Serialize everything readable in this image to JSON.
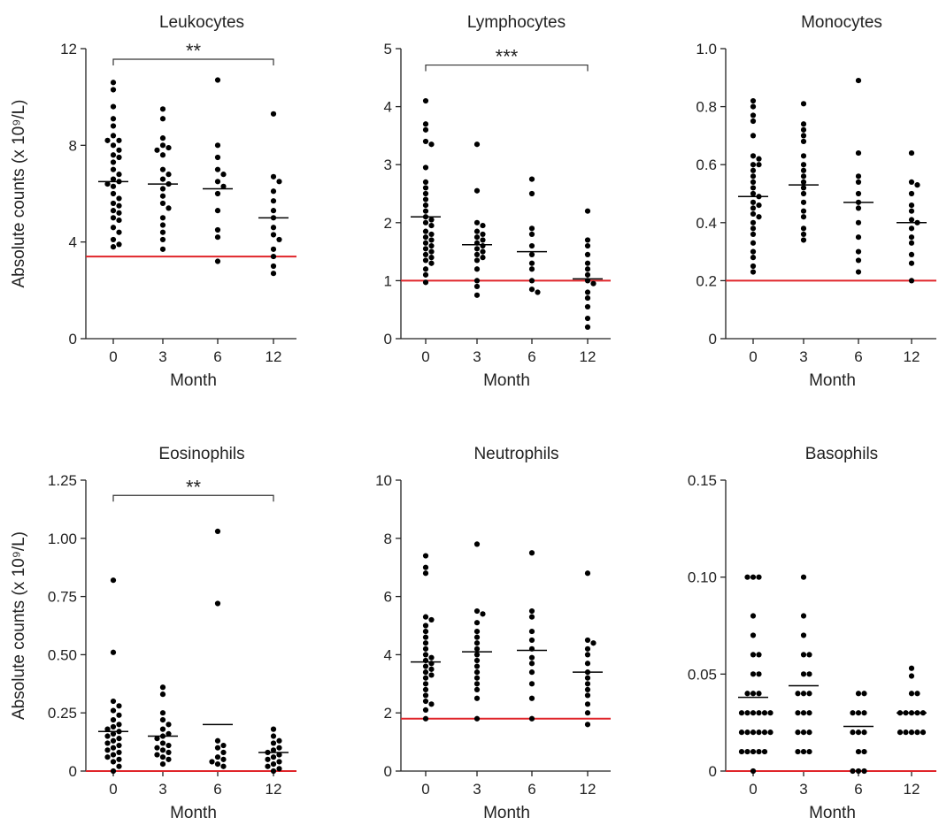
{
  "figure": {
    "ylabel": "Absolute counts (x 10⁹/L)",
    "xlabel": "Month",
    "reference_line_color": "#e0252a",
    "point_color": "#000000",
    "mean_line_color": "#000000"
  },
  "chart_data": [
    {
      "type": "scatter",
      "title": "Leukocytes",
      "xlabel": "Month",
      "ylabel": "Absolute counts (x 10⁹/L)",
      "categories": [
        "0",
        "3",
        "6",
        "12"
      ],
      "ylim": [
        0,
        12
      ],
      "yticks": [
        0,
        4,
        8,
        12
      ],
      "ytick_labels": [
        "0",
        "4",
        "8",
        "12"
      ],
      "reference_line": 3.4,
      "means": [
        6.5,
        6.4,
        6.2,
        5.0
      ],
      "points": [
        [
          10.6,
          10.3,
          9.6,
          9.1,
          8.8,
          8.4,
          8.2,
          8.2,
          8.0,
          7.8,
          7.6,
          7.5,
          7.3,
          7.0,
          6.8,
          6.6,
          6.5,
          6.4,
          6.3,
          6.0,
          5.8,
          5.6,
          5.5,
          5.3,
          5.2,
          5.0,
          4.9,
          4.6,
          4.4,
          4.1,
          3.9,
          3.8
        ],
        [
          9.5,
          9.1,
          8.3,
          8.0,
          7.9,
          7.8,
          7.6,
          7.0,
          6.8,
          6.6,
          6.4,
          6.2,
          5.9,
          5.6,
          5.4,
          5.0,
          4.7,
          4.4,
          4.1,
          3.7
        ],
        [
          10.7,
          8.0,
          7.5,
          7.0,
          6.8,
          6.5,
          6.3,
          6.0,
          5.3,
          4.5,
          4.2,
          3.2
        ],
        [
          9.3,
          6.7,
          6.5,
          6.1,
          5.7,
          5.3,
          5.0,
          4.6,
          4.3,
          4.1,
          3.7,
          3.4,
          3.0,
          2.7
        ]
      ],
      "annotation": {
        "text": "**",
        "from": "0",
        "to": "12",
        "y": 12.0
      }
    },
    {
      "type": "scatter",
      "title": "Lymphocytes",
      "xlabel": "Month",
      "ylabel": "",
      "categories": [
        "0",
        "3",
        "6",
        "12"
      ],
      "ylim": [
        0,
        5
      ],
      "yticks": [
        0,
        1,
        2,
        3,
        4,
        5
      ],
      "ytick_labels": [
        "0",
        "1",
        "2",
        "3",
        "4",
        "5"
      ],
      "reference_line": 1.0,
      "means": [
        2.1,
        1.62,
        1.5,
        1.03
      ],
      "points": [
        [
          4.1,
          3.7,
          3.6,
          3.4,
          3.35,
          2.95,
          2.7,
          2.6,
          2.5,
          2.4,
          2.3,
          2.2,
          2.1,
          2.05,
          2.0,
          1.95,
          1.85,
          1.8,
          1.75,
          1.7,
          1.65,
          1.6,
          1.55,
          1.5,
          1.45,
          1.4,
          1.35,
          1.3,
          1.2,
          1.1,
          0.97
        ],
        [
          3.35,
          2.55,
          2.0,
          1.95,
          1.85,
          1.8,
          1.75,
          1.7,
          1.65,
          1.6,
          1.55,
          1.5,
          1.45,
          1.4,
          1.35,
          1.2,
          1.0,
          0.9,
          0.75
        ],
        [
          2.75,
          2.5,
          1.9,
          1.8,
          1.6,
          1.45,
          1.3,
          1.2,
          1.0,
          0.85,
          0.8
        ],
        [
          2.2,
          1.7,
          1.6,
          1.45,
          1.3,
          1.2,
          1.1,
          1.0,
          0.95,
          0.8,
          0.7,
          0.55,
          0.35,
          0.2
        ]
      ],
      "annotation": {
        "text": "***",
        "from": "0",
        "to": "12",
        "y": 4.9
      }
    },
    {
      "type": "scatter",
      "title": "Monocytes",
      "xlabel": "Month",
      "ylabel": "",
      "categories": [
        "0",
        "3",
        "6",
        "12"
      ],
      "ylim": [
        0,
        1.0
      ],
      "yticks": [
        0,
        0.2,
        0.4,
        0.6,
        0.8,
        1.0
      ],
      "ytick_labels": [
        "0",
        "0.2",
        "0.4",
        "0.6",
        "0.8",
        "1.0"
      ],
      "reference_line": 0.2,
      "means": [
        0.49,
        0.53,
        0.47,
        0.4
      ],
      "points": [
        [
          0.82,
          0.8,
          0.77,
          0.75,
          0.7,
          0.63,
          0.62,
          0.6,
          0.6,
          0.58,
          0.56,
          0.54,
          0.52,
          0.5,
          0.49,
          0.47,
          0.46,
          0.45,
          0.43,
          0.42,
          0.4,
          0.38,
          0.36,
          0.33,
          0.3,
          0.28,
          0.25,
          0.23
        ],
        [
          0.81,
          0.74,
          0.72,
          0.7,
          0.68,
          0.63,
          0.6,
          0.58,
          0.56,
          0.54,
          0.52,
          0.5,
          0.47,
          0.44,
          0.42,
          0.38,
          0.36,
          0.34
        ],
        [
          0.89,
          0.64,
          0.56,
          0.54,
          0.5,
          0.47,
          0.45,
          0.4,
          0.35,
          0.3,
          0.27,
          0.23
        ],
        [
          0.64,
          0.54,
          0.53,
          0.5,
          0.46,
          0.44,
          0.41,
          0.4,
          0.38,
          0.35,
          0.33,
          0.29,
          0.26,
          0.2
        ]
      ],
      "annotation": null
    },
    {
      "type": "scatter",
      "title": "Eosinophils",
      "xlabel": "Month",
      "ylabel": "Absolute counts (x 10⁹/L)",
      "categories": [
        "0",
        "3",
        "6",
        "12"
      ],
      "ylim": [
        0,
        1.25
      ],
      "yticks": [
        0,
        0.25,
        0.5,
        0.75,
        1.0,
        1.25
      ],
      "ytick_labels": [
        "0",
        "0.25",
        "0.50",
        "0.75",
        "1.00",
        "1.25"
      ],
      "reference_line": 0.0,
      "means": [
        0.17,
        0.15,
        0.2,
        0.08
      ],
      "points": [
        [
          0.82,
          0.51,
          0.3,
          0.28,
          0.26,
          0.24,
          0.22,
          0.2,
          0.19,
          0.18,
          0.17,
          0.16,
          0.15,
          0.14,
          0.13,
          0.12,
          0.11,
          0.1,
          0.09,
          0.08,
          0.07,
          0.06,
          0.05,
          0.04,
          0.02,
          0.0
        ],
        [
          0.36,
          0.33,
          0.25,
          0.22,
          0.2,
          0.18,
          0.16,
          0.15,
          0.14,
          0.12,
          0.11,
          0.1,
          0.09,
          0.08,
          0.07,
          0.06,
          0.05,
          0.03
        ],
        [
          1.03,
          0.72,
          0.13,
          0.11,
          0.1,
          0.08,
          0.06,
          0.05,
          0.04,
          0.03,
          0.02
        ],
        [
          0.18,
          0.15,
          0.13,
          0.12,
          0.1,
          0.09,
          0.08,
          0.07,
          0.06,
          0.05,
          0.04,
          0.03,
          0.02,
          0.01,
          0.0
        ]
      ],
      "annotation": {
        "text": "**",
        "from": "0",
        "to": "12",
        "y": 1.23
      }
    },
    {
      "type": "scatter",
      "title": "Neutrophils",
      "xlabel": "Month",
      "ylabel": "",
      "categories": [
        "0",
        "3",
        "6",
        "12"
      ],
      "ylim": [
        0,
        10
      ],
      "yticks": [
        0,
        2,
        4,
        6,
        8,
        10
      ],
      "ytick_labels": [
        "0",
        "2",
        "4",
        "6",
        "8",
        "10"
      ],
      "reference_line": 1.8,
      "means": [
        3.75,
        4.1,
        4.15,
        3.4
      ],
      "points": [
        [
          7.4,
          7.0,
          6.8,
          5.3,
          5.2,
          5.0,
          4.8,
          4.6,
          4.4,
          4.2,
          4.0,
          3.9,
          3.8,
          3.7,
          3.6,
          3.5,
          3.4,
          3.3,
          3.2,
          3.0,
          2.8,
          2.6,
          2.4,
          2.3,
          2.1,
          1.8
        ],
        [
          7.8,
          5.5,
          5.4,
          5.1,
          4.8,
          4.6,
          4.4,
          4.2,
          4.0,
          3.8,
          3.6,
          3.4,
          3.2,
          3.0,
          2.8,
          2.5,
          1.8
        ],
        [
          7.5,
          5.5,
          5.3,
          4.8,
          4.5,
          4.2,
          3.9,
          3.7,
          3.4,
          3.0,
          2.5,
          1.8
        ],
        [
          6.8,
          4.5,
          4.4,
          4.2,
          4.0,
          3.7,
          3.4,
          3.2,
          3.0,
          2.8,
          2.6,
          2.3,
          2.0,
          1.6
        ]
      ],
      "annotation": null
    },
    {
      "type": "scatter",
      "title": "Basophils",
      "xlabel": "Month",
      "ylabel": "",
      "categories": [
        "0",
        "3",
        "6",
        "12"
      ],
      "ylim": [
        0,
        0.15
      ],
      "yticks": [
        0,
        0.05,
        0.1,
        0.15
      ],
      "ytick_labels": [
        "0",
        "0.05",
        "0.10",
        "0.15"
      ],
      "reference_line": 0.0,
      "means": [
        0.038,
        0.044,
        0.023,
        0.03
      ],
      "points": [
        [
          0.1,
          0.1,
          0.1,
          0.08,
          0.07,
          0.06,
          0.06,
          0.05,
          0.05,
          0.04,
          0.04,
          0.04,
          0.03,
          0.03,
          0.03,
          0.03,
          0.03,
          0.03,
          0.02,
          0.02,
          0.02,
          0.02,
          0.02,
          0.02,
          0.01,
          0.01,
          0.01,
          0.01,
          0.01,
          0.0
        ],
        [
          0.1,
          0.08,
          0.07,
          0.06,
          0.06,
          0.05,
          0.05,
          0.04,
          0.04,
          0.04,
          0.03,
          0.03,
          0.03,
          0.02,
          0.02,
          0.02,
          0.01,
          0.01,
          0.01
        ],
        [
          0.04,
          0.04,
          0.03,
          0.03,
          0.03,
          0.02,
          0.02,
          0.02,
          0.01,
          0.01,
          0.0,
          0.0,
          0.0
        ],
        [
          0.053,
          0.049,
          0.04,
          0.04,
          0.03,
          0.03,
          0.03,
          0.03,
          0.03,
          0.02,
          0.02,
          0.02,
          0.02,
          0.02
        ]
      ],
      "annotation": null
    }
  ]
}
